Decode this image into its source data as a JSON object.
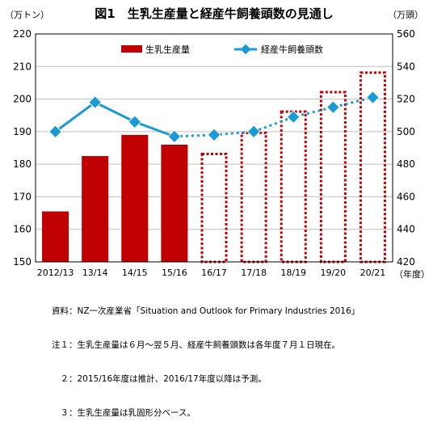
{
  "title": "図1　生乳生産量と経産牛飼養頭数の見通し",
  "left_unit": "（万トン）",
  "right_unit": "（万頭）",
  "year_unit": "（年度）",
  "notes": [
    "資料：NZ一次産業省「Situation and Outlook for Primary Industries 2016」",
    "注１：生乳生産量は６月～翌５月、経産牛飼養頭数は各年度７月１日現在。",
    "　２：2015/16年度は推計、2016/17年度以降は予測。",
    "　３：生乳生産量は乳固形分ベース。"
  ],
  "chart_data": {
    "type": "bar",
    "categories": [
      "2012/13",
      "13/14",
      "14/15",
      "15/16",
      "16/17",
      "17/18",
      "18/19",
      "19/20",
      "20/21"
    ],
    "ylim": [
      150,
      220
    ],
    "y_ticks": [
      150,
      160,
      170,
      180,
      190,
      200,
      210,
      220
    ],
    "y2lim": [
      420,
      560
    ],
    "y2_ticks": [
      420,
      440,
      460,
      480,
      500,
      520,
      540,
      560
    ],
    "grid": true,
    "legend_position": "top",
    "series": [
      {
        "name": "生乳生産量",
        "type": "bar",
        "axis": "left",
        "color": "#c00000",
        "values": [
          165.5,
          182.5,
          189,
          186,
          183.5,
          190,
          196.5,
          202.5,
          208.5
        ],
        "forecast_from_index": 4
      },
      {
        "name": "経産牛飼養頭数",
        "type": "line",
        "axis": "right",
        "color": "#1a9bd7",
        "values": [
          500,
          518,
          506,
          497,
          498,
          500,
          509,
          515,
          521
        ],
        "forecast_from_index": 3
      }
    ]
  }
}
